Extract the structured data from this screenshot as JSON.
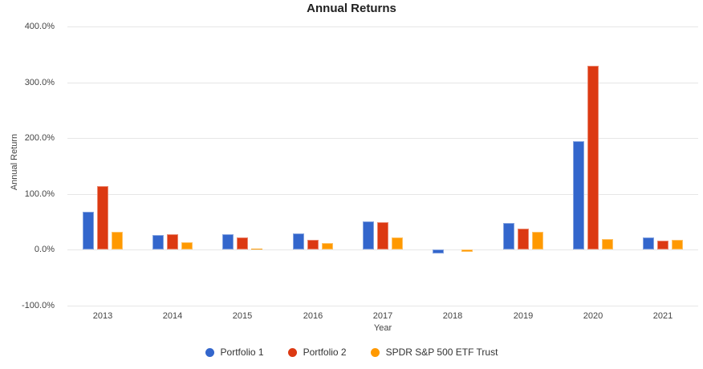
{
  "title": "Annual Returns",
  "colors": {
    "portfolio1": "#3366CC",
    "portfolio2": "#DC3912",
    "benchmark": "#FF9900",
    "gridline": "#E6E6E6",
    "axis_text": "#444444",
    "title_text": "#212121"
  },
  "y_axis": {
    "label": "Annual Return",
    "ticks": [
      {
        "value": 400,
        "label": "400.0%"
      },
      {
        "value": 300,
        "label": "300.0%"
      },
      {
        "value": 200,
        "label": "200.0%"
      },
      {
        "value": 100,
        "label": "100.0%"
      },
      {
        "value": 0,
        "label": "0.0%"
      },
      {
        "value": -100,
        "label": "-100.0%"
      }
    ]
  },
  "x_axis": {
    "label": "Year"
  },
  "legend": {
    "items": [
      {
        "label": "Portfolio 1",
        "color": "#3366CC"
      },
      {
        "label": "Portfolio 2",
        "color": "#DC3912"
      },
      {
        "label": "SPDR S&P 500 ETF Trust",
        "color": "#FF9900"
      }
    ]
  },
  "chart_data": {
    "type": "bar",
    "title": "Annual Returns",
    "xlabel": "Year",
    "ylabel": "Annual Return",
    "ylim": [
      -100,
      400
    ],
    "y_tick_values": [
      400,
      300,
      200,
      100,
      0,
      -100
    ],
    "y_tick_labels": [
      "400.0%",
      "300.0%",
      "200.0%",
      "100.0%",
      "0.0%",
      "-100.0%"
    ],
    "grid": true,
    "legend_position": "bottom",
    "categories": [
      "2013",
      "2014",
      "2015",
      "2016",
      "2017",
      "2018",
      "2019",
      "2020",
      "2021"
    ],
    "series": [
      {
        "name": "Portfolio 1",
        "color": "#3366CC",
        "values": [
          67.0,
          25.4,
          27.0,
          28.6,
          50.0,
          -7.0,
          47.6,
          194.0,
          22.0
        ]
      },
      {
        "name": "Portfolio 2",
        "color": "#DC3912",
        "values": [
          113.3,
          27.1,
          21.5,
          17.7,
          48.5,
          0.0,
          37.0,
          330.0,
          15.7
        ]
      },
      {
        "name": "SPDR S&P 500 ETF Trust",
        "color": "#FF9900",
        "values": [
          32.3,
          13.5,
          1.2,
          12.0,
          21.7,
          -4.5,
          31.2,
          18.4,
          17.0
        ]
      }
    ]
  }
}
